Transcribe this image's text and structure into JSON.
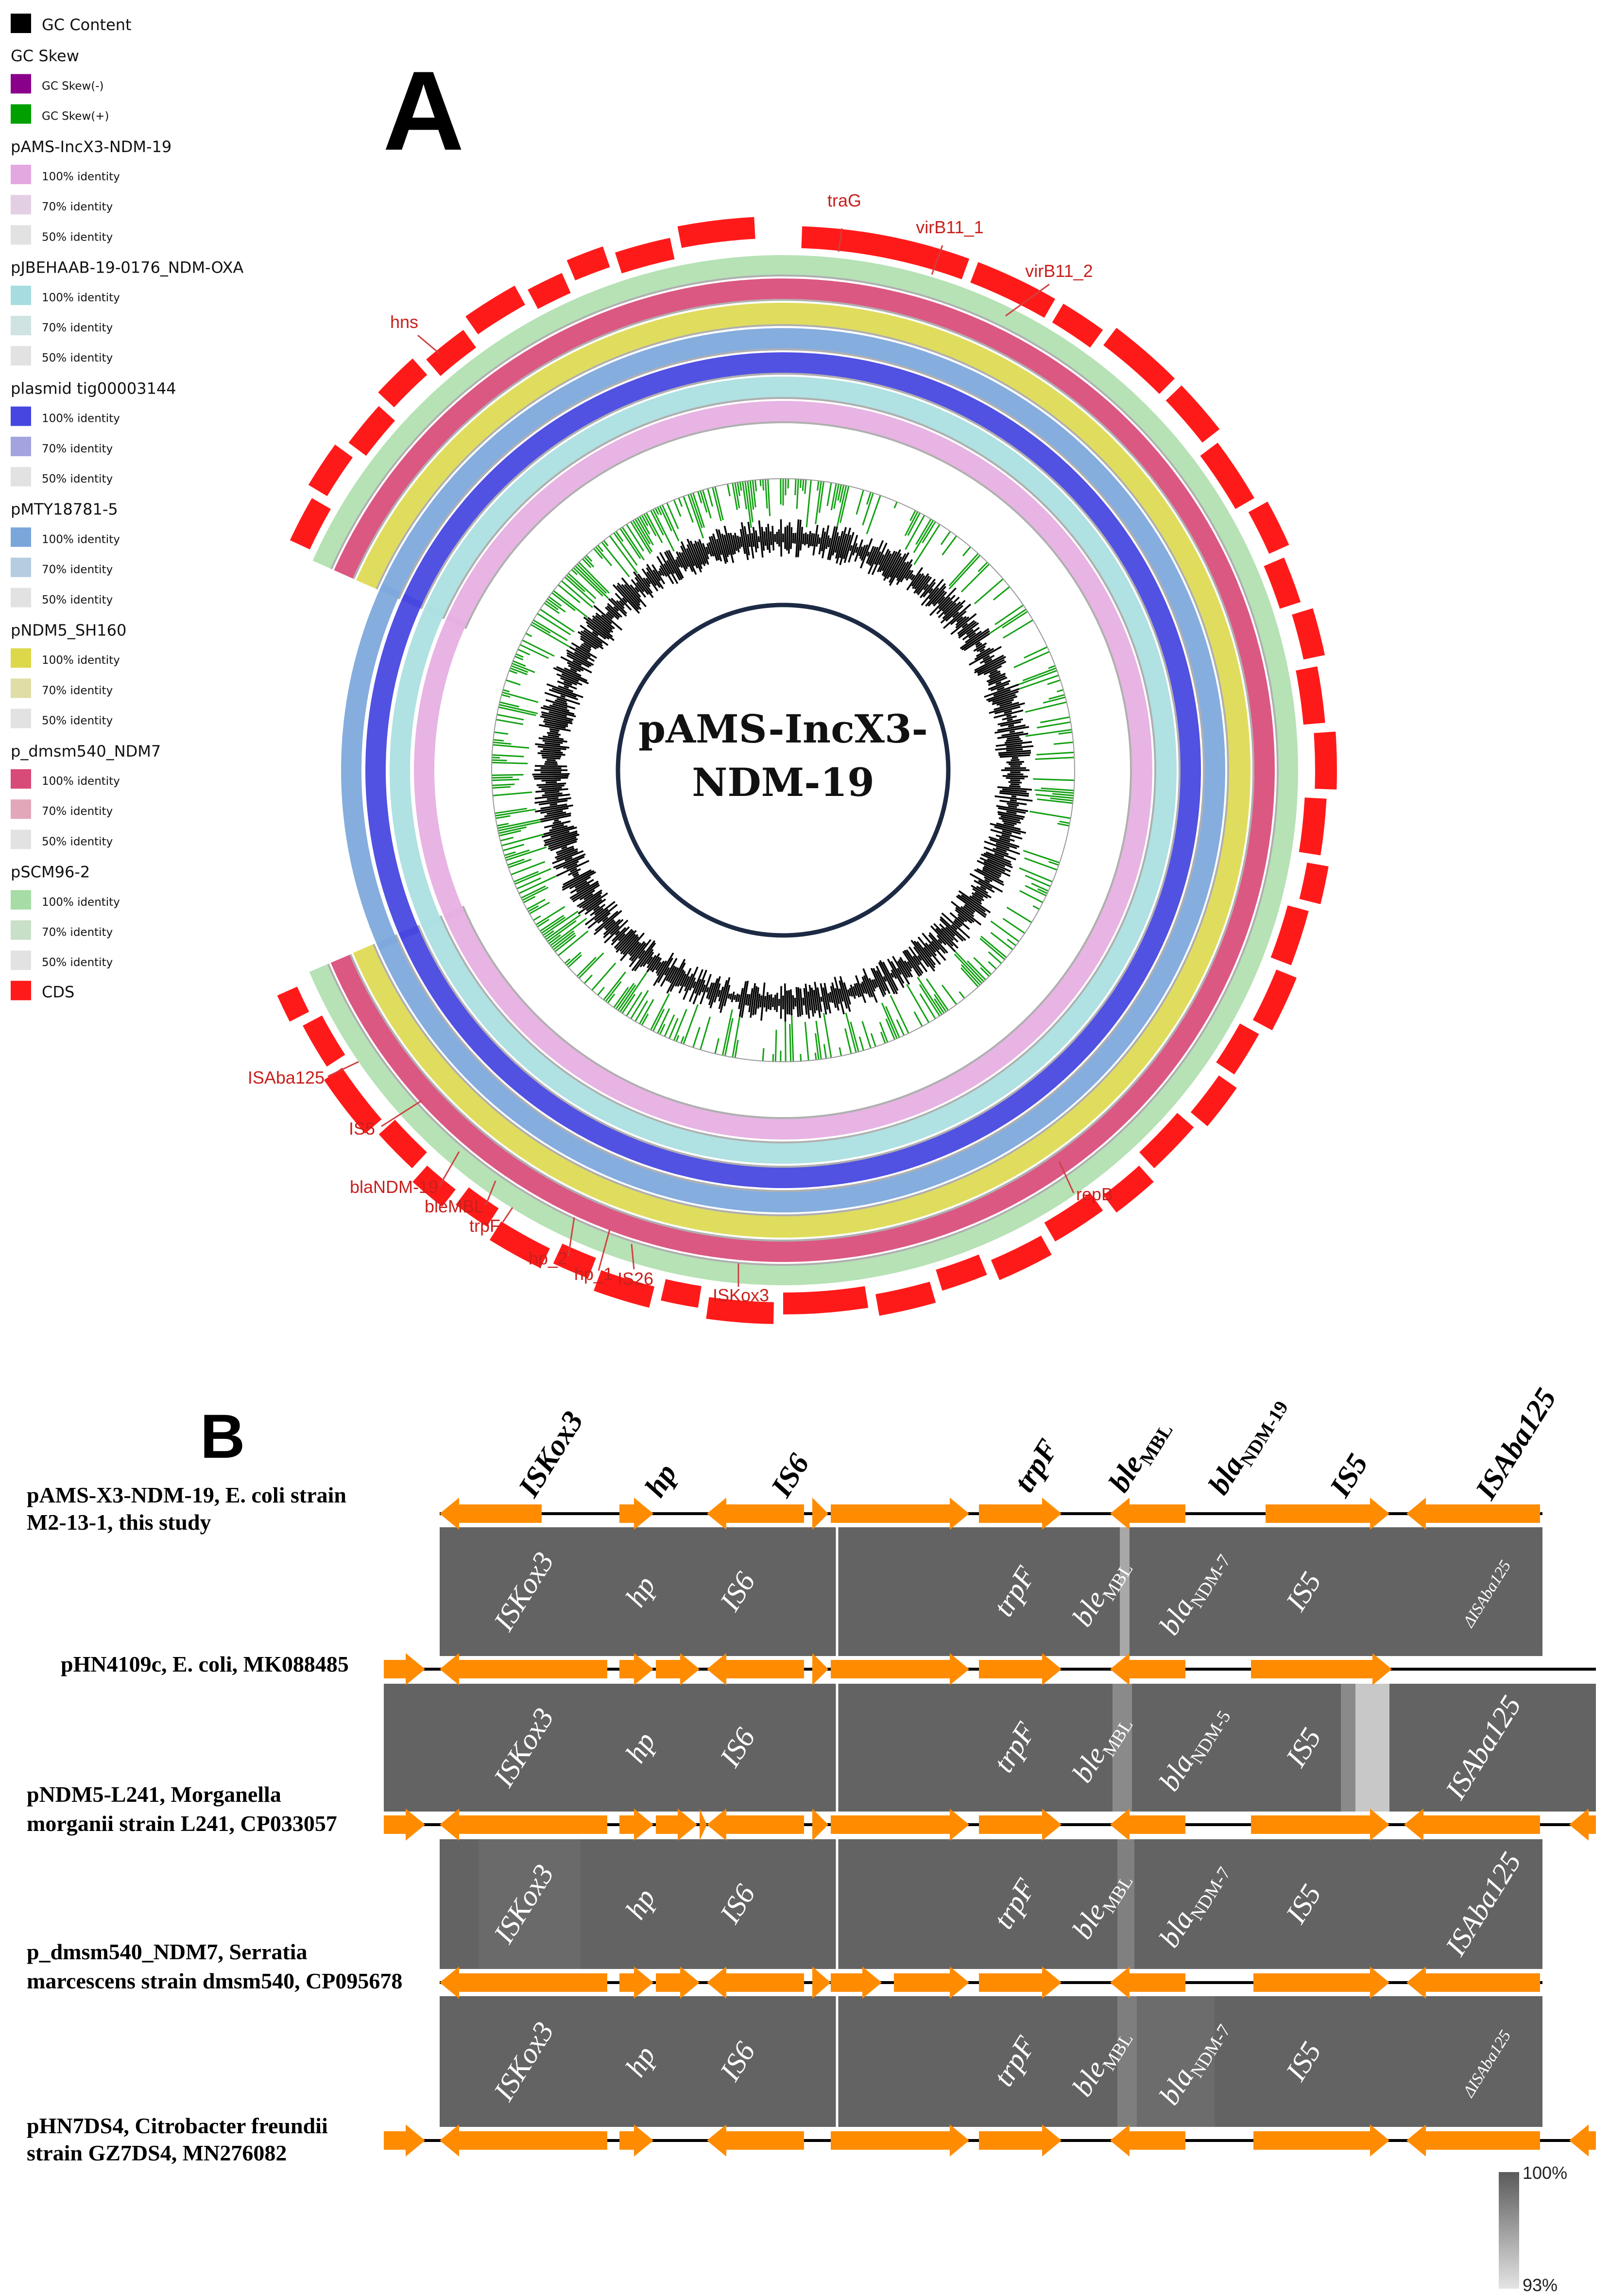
{
  "panel_a": {
    "letter": "A",
    "center_title": [
      "pAMS-IncX3-",
      "NDM-19"
    ],
    "legend": [
      {
        "kind": "entry",
        "text": "GC Content",
        "color": "#000000"
      },
      {
        "kind": "header",
        "text": "GC Skew"
      },
      {
        "kind": "entry",
        "small": true,
        "text": "GC Skew(-)",
        "color": "#8b008b"
      },
      {
        "kind": "entry",
        "small": true,
        "text": "GC Skew(+)",
        "color": "#00a000"
      },
      {
        "kind": "header",
        "text": "pAMS-IncX3-NDM-19"
      },
      {
        "kind": "entry",
        "small": true,
        "text": "100% identity",
        "color": "#e4a8e0"
      },
      {
        "kind": "entry",
        "small": true,
        "text": "70% identity",
        "color": "#e3cfe3"
      },
      {
        "kind": "entry",
        "small": true,
        "text": "50% identity",
        "color": "#e2e2e2"
      },
      {
        "kind": "header",
        "text": "pJBEHAAB-19-0176_NDM-OXA"
      },
      {
        "kind": "entry",
        "small": true,
        "text": "100% identity",
        "color": "#a7dde0"
      },
      {
        "kind": "entry",
        "small": true,
        "text": "70% identity",
        "color": "#cfe3e3"
      },
      {
        "kind": "entry",
        "small": true,
        "text": "50% identity",
        "color": "#e2e2e2"
      },
      {
        "kind": "header",
        "text": "plasmid tig00003144"
      },
      {
        "kind": "entry",
        "small": true,
        "text": "100% identity",
        "color": "#4646e0"
      },
      {
        "kind": "entry",
        "small": true,
        "text": "70% identity",
        "color": "#a3a3df"
      },
      {
        "kind": "entry",
        "small": true,
        "text": "50% identity",
        "color": "#e2e2e2"
      },
      {
        "kind": "header",
        "text": "pMTY18781-5"
      },
      {
        "kind": "entry",
        "small": true,
        "text": "100% identity",
        "color": "#7aa6da"
      },
      {
        "kind": "entry",
        "small": true,
        "text": "70% identity",
        "color": "#b5cde0"
      },
      {
        "kind": "entry",
        "small": true,
        "text": "50% identity",
        "color": "#e2e2e2"
      },
      {
        "kind": "header",
        "text": "pNDM5_SH160"
      },
      {
        "kind": "entry",
        "small": true,
        "text": "100% identity",
        "color": "#dcd84a"
      },
      {
        "kind": "entry",
        "small": true,
        "text": "70% identity",
        "color": "#e0dea6"
      },
      {
        "kind": "entry",
        "small": true,
        "text": "50% identity",
        "color": "#e2e2e2"
      },
      {
        "kind": "header",
        "text": "p_dmsm540_NDM7"
      },
      {
        "kind": "entry",
        "small": true,
        "text": "100% identity",
        "color": "#d84a78"
      },
      {
        "kind": "entry",
        "small": true,
        "text": "70% identity",
        "color": "#e2a8ba"
      },
      {
        "kind": "entry",
        "small": true,
        "text": "50% identity",
        "color": "#e2e2e2"
      },
      {
        "kind": "header",
        "text": "pSCM96-2"
      },
      {
        "kind": "entry",
        "small": true,
        "text": "100% identity",
        "color": "#a6dca6"
      },
      {
        "kind": "entry",
        "small": true,
        "text": "70% identity",
        "color": "#c8dfc8"
      },
      {
        "kind": "entry",
        "small": true,
        "text": "50% identity",
        "color": "#e2e2e2"
      },
      {
        "kind": "entry",
        "text": "CDS",
        "color": "#ff1a1a"
      }
    ],
    "rings": [
      {
        "name": "pSCM96-2",
        "color": "#b2e0b2"
      },
      {
        "name": "p_dmsm540_NDM7",
        "color": "#d94f7c"
      },
      {
        "name": "pNDM5_SH160",
        "color": "#dedb55"
      },
      {
        "name": "pMTY18781-5",
        "color": "#7ea9dc"
      },
      {
        "name": "plasmid tig00003144",
        "color": "#4848e0"
      },
      {
        "name": "pJBEHAAB-19-0176_NDM-OXA",
        "color": "#acdfe2"
      },
      {
        "name": "pAMS-IncX3-NDM-19",
        "color": "#e6b0e2"
      }
    ],
    "gene_labels": [
      "traG",
      "virB11_1",
      "virB11_2",
      "hns",
      "ISAba125",
      "IS5",
      "blaNDM-19",
      "bleMBL",
      "trpF",
      "hp_2",
      "hp_1",
      "IS26",
      "ISKox3",
      "repB"
    ]
  },
  "panel_b": {
    "letter": "B",
    "top_labels": [
      {
        "main": "ISKox3",
        "sub": ""
      },
      {
        "main": "hp",
        "sub": ""
      },
      {
        "main": "IS6",
        "sub": ""
      },
      {
        "main": "trpF",
        "sub": ""
      },
      {
        "main": "ble",
        "sub": "MBL"
      },
      {
        "main": "bla",
        "sub": "NDM-19"
      },
      {
        "main": "IS5",
        "sub": ""
      },
      {
        "main": "ISAba125",
        "sub": ""
      }
    ],
    "sequences": [
      {
        "lines": [
          "pAMS-X3-NDM-19, E. coli strain",
          "M2-13-1, this study"
        ]
      },
      {
        "lines": [
          "pHN4109c, E. coli, MK088485"
        ]
      },
      {
        "lines": [
          "pNDM5-L241,          Morganella",
          "morganii strain L241, CP033057"
        ]
      },
      {
        "lines": [
          "p_dmsm540_NDM7, Serratia",
          "marcescens strain dmsm540, CP095678"
        ]
      },
      {
        "lines": [
          "pHN7DS4, Citrobacter freundii",
          "strain GZ7DS4, MN276082"
        ]
      }
    ],
    "band_labels": [
      [
        {
          "main": "ISKox3",
          "sub": ""
        },
        {
          "main": "hp",
          "sub": ""
        },
        {
          "main": "IS6",
          "sub": ""
        },
        {
          "main": "trpF",
          "sub": ""
        },
        {
          "main": "ble",
          "sub": "MBL"
        },
        {
          "main": "bla",
          "sub": "NDM-7"
        },
        {
          "main": "IS5",
          "sub": ""
        },
        {
          "main": "ΔISAba125",
          "sub": ""
        }
      ],
      [
        {
          "main": "ISKox3",
          "sub": ""
        },
        {
          "main": "hp",
          "sub": ""
        },
        {
          "main": "IS6",
          "sub": ""
        },
        {
          "main": "trpF",
          "sub": ""
        },
        {
          "main": "ble",
          "sub": "MBL"
        },
        {
          "main": "bla",
          "sub": "NDM-5"
        },
        {
          "main": "IS5",
          "sub": ""
        },
        {
          "main": "ISAba125",
          "sub": ""
        }
      ],
      [
        {
          "main": "ISKox3",
          "sub": ""
        },
        {
          "main": "hp",
          "sub": ""
        },
        {
          "main": "IS6",
          "sub": ""
        },
        {
          "main": "trpF",
          "sub": ""
        },
        {
          "main": "ble",
          "sub": "MBL"
        },
        {
          "main": "bla",
          "sub": "NDM-7"
        },
        {
          "main": "IS5",
          "sub": ""
        },
        {
          "main": "ISAba125",
          "sub": ""
        }
      ],
      [
        {
          "main": "ISKox3",
          "sub": ""
        },
        {
          "main": "hp",
          "sub": ""
        },
        {
          "main": "IS6",
          "sub": ""
        },
        {
          "main": "trpF",
          "sub": ""
        },
        {
          "main": "ble",
          "sub": "MBL"
        },
        {
          "main": "bla",
          "sub": "NDM-7"
        },
        {
          "main": "IS5",
          "sub": ""
        },
        {
          "main": "ΔISAba125",
          "sub": ""
        }
      ]
    ],
    "scale": {
      "max": "100%",
      "min": "93%"
    },
    "colors": {
      "arrow": "#ff8c00",
      "band": "#636363",
      "line": "#000000"
    }
  }
}
